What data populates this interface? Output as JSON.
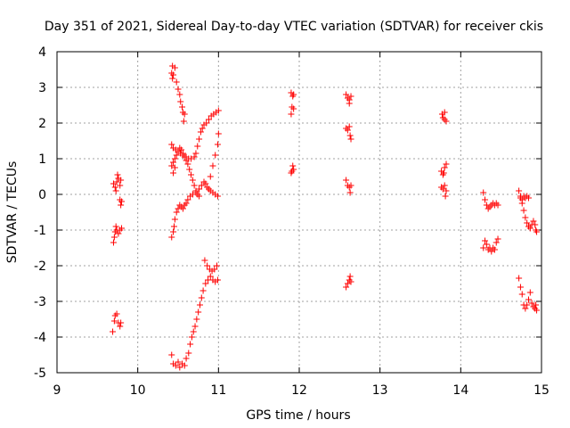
{
  "chart_data": {
    "type": "scatter",
    "title": "Day 351 of 2021, Sidereal Day-to-day VTEC variation (SDTVAR) for receiver ckis",
    "xlabel": "GPS time / hours",
    "ylabel": "SDTVAR / TECUs",
    "xlim": [
      9,
      15
    ],
    "ylim": [
      -5,
      4
    ],
    "x_ticks": [
      "9",
      "10",
      "11",
      "12",
      "13",
      "14",
      "15"
    ],
    "y_ticks": [
      "-5",
      "-4",
      "-3",
      "-2",
      "-1",
      "0",
      "1",
      "2",
      "3",
      "4"
    ],
    "grid": true,
    "marker": "+",
    "marker_color": "#ff0000",
    "series": [
      {
        "name": "SDTVAR",
        "points": [
          [
            9.7,
            0.3
          ],
          [
            9.72,
            0.2
          ],
          [
            9.74,
            0.35
          ],
          [
            9.76,
            0.45
          ],
          [
            9.78,
            0.25
          ],
          [
            9.75,
            0.55
          ],
          [
            9.73,
            0.1
          ],
          [
            9.79,
            0.4
          ],
          [
            9.78,
            -0.15
          ],
          [
            9.79,
            -0.3
          ],
          [
            9.8,
            -0.2
          ],
          [
            9.7,
            -1.35
          ],
          [
            9.71,
            -1.2
          ],
          [
            9.72,
            -1.05
          ],
          [
            9.73,
            -0.9
          ],
          [
            9.74,
            -1.0
          ],
          [
            9.76,
            -1.1
          ],
          [
            9.78,
            -1.0
          ],
          [
            9.8,
            -0.95
          ],
          [
            9.69,
            -3.85
          ],
          [
            9.71,
            -3.55
          ],
          [
            9.72,
            -3.4
          ],
          [
            9.74,
            -3.35
          ],
          [
            9.76,
            -3.6
          ],
          [
            9.78,
            -3.7
          ],
          [
            9.79,
            -3.6
          ],
          [
            10.43,
            3.6
          ],
          [
            10.46,
            3.55
          ],
          [
            10.42,
            3.4
          ],
          [
            10.44,
            3.35
          ],
          [
            10.43,
            3.25
          ],
          [
            10.48,
            3.15
          ],
          [
            10.5,
            2.95
          ],
          [
            10.52,
            2.8
          ],
          [
            10.53,
            2.6
          ],
          [
            10.55,
            2.45
          ],
          [
            10.56,
            2.3
          ],
          [
            10.58,
            2.25
          ],
          [
            10.57,
            2.05
          ],
          [
            10.42,
            1.4
          ],
          [
            10.44,
            1.3
          ],
          [
            10.47,
            1.25
          ],
          [
            10.5,
            1.2
          ],
          [
            10.53,
            1.15
          ],
          [
            10.56,
            1.1
          ],
          [
            10.6,
            1.05
          ],
          [
            10.63,
            1.0
          ],
          [
            10.66,
            1.0
          ],
          [
            10.7,
            1.05
          ],
          [
            10.72,
            1.15
          ],
          [
            10.74,
            1.35
          ],
          [
            10.76,
            1.55
          ],
          [
            10.78,
            1.75
          ],
          [
            10.8,
            1.85
          ],
          [
            10.82,
            1.95
          ],
          [
            10.85,
            2.0
          ],
          [
            10.88,
            2.1
          ],
          [
            10.91,
            2.2
          ],
          [
            10.94,
            2.25
          ],
          [
            10.97,
            2.3
          ],
          [
            11.0,
            2.35
          ],
          [
            10.42,
            0.8
          ],
          [
            10.44,
            0.9
          ],
          [
            10.46,
            1.0
          ],
          [
            10.48,
            1.1
          ],
          [
            10.5,
            1.2
          ],
          [
            10.52,
            1.3
          ],
          [
            10.54,
            1.25
          ],
          [
            10.56,
            1.15
          ],
          [
            10.58,
            1.05
          ],
          [
            10.6,
            0.95
          ],
          [
            10.62,
            0.85
          ],
          [
            10.64,
            0.7
          ],
          [
            10.66,
            0.55
          ],
          [
            10.68,
            0.4
          ],
          [
            10.7,
            0.25
          ],
          [
            10.72,
            0.1
          ],
          [
            10.74,
            0.0
          ],
          [
            10.76,
            -0.05
          ],
          [
            10.44,
            0.6
          ],
          [
            10.46,
            0.75
          ],
          [
            10.42,
            -1.2
          ],
          [
            10.44,
            -1.05
          ],
          [
            10.45,
            -0.9
          ],
          [
            10.46,
            -0.7
          ],
          [
            10.48,
            -0.5
          ],
          [
            10.5,
            -0.4
          ],
          [
            10.52,
            -0.3
          ],
          [
            10.54,
            -0.35
          ],
          [
            10.56,
            -0.4
          ],
          [
            10.58,
            -0.3
          ],
          [
            10.6,
            -0.25
          ],
          [
            10.62,
            -0.15
          ],
          [
            10.65,
            -0.05
          ],
          [
            10.68,
            0.0
          ],
          [
            10.72,
            0.05
          ],
          [
            10.76,
            0.15
          ],
          [
            10.79,
            0.25
          ],
          [
            10.82,
            0.35
          ],
          [
            10.84,
            0.3
          ],
          [
            10.86,
            0.2
          ],
          [
            10.88,
            0.15
          ],
          [
            10.9,
            0.1
          ],
          [
            10.93,
            0.05
          ],
          [
            10.96,
            0.0
          ],
          [
            10.99,
            -0.05
          ],
          [
            10.9,
            0.5
          ],
          [
            10.93,
            0.8
          ],
          [
            10.96,
            1.1
          ],
          [
            10.99,
            1.4
          ],
          [
            11.0,
            1.7
          ],
          [
            10.42,
            -4.5
          ],
          [
            10.44,
            -4.75
          ],
          [
            10.47,
            -4.8
          ],
          [
            10.5,
            -4.7
          ],
          [
            10.52,
            -4.85
          ],
          [
            10.55,
            -4.75
          ],
          [
            10.58,
            -4.8
          ],
          [
            10.6,
            -4.6
          ],
          [
            10.63,
            -4.45
          ],
          [
            10.65,
            -4.2
          ],
          [
            10.67,
            -4.0
          ],
          [
            10.69,
            -3.85
          ],
          [
            10.71,
            -3.7
          ],
          [
            10.73,
            -3.5
          ],
          [
            10.75,
            -3.3
          ],
          [
            10.77,
            -3.1
          ],
          [
            10.79,
            -2.9
          ],
          [
            10.81,
            -2.7
          ],
          [
            10.84,
            -2.5
          ],
          [
            10.87,
            -2.4
          ],
          [
            10.9,
            -2.3
          ],
          [
            10.93,
            -2.4
          ],
          [
            10.96,
            -2.45
          ],
          [
            10.99,
            -2.4
          ],
          [
            10.83,
            -1.85
          ],
          [
            10.86,
            -2.0
          ],
          [
            10.89,
            -2.1
          ],
          [
            10.92,
            -2.15
          ],
          [
            10.95,
            -2.1
          ],
          [
            10.98,
            -2.0
          ],
          [
            11.9,
            2.85
          ],
          [
            11.92,
            2.75
          ],
          [
            11.93,
            2.8
          ],
          [
            11.91,
            2.45
          ],
          [
            11.93,
            2.4
          ],
          [
            11.9,
            2.25
          ],
          [
            11.9,
            0.6
          ],
          [
            11.92,
            0.8
          ],
          [
            11.93,
            0.7
          ],
          [
            11.91,
            0.65
          ],
          [
            12.58,
            2.8
          ],
          [
            12.6,
            2.7
          ],
          [
            12.62,
            2.65
          ],
          [
            12.64,
            2.75
          ],
          [
            12.62,
            2.55
          ],
          [
            12.58,
            1.85
          ],
          [
            12.6,
            1.8
          ],
          [
            12.62,
            1.9
          ],
          [
            12.63,
            1.65
          ],
          [
            12.64,
            1.55
          ],
          [
            12.58,
            0.4
          ],
          [
            12.6,
            0.25
          ],
          [
            12.62,
            0.2
          ],
          [
            12.64,
            0.25
          ],
          [
            12.63,
            0.05
          ],
          [
            12.58,
            -2.6
          ],
          [
            12.6,
            -2.5
          ],
          [
            12.62,
            -2.4
          ],
          [
            12.63,
            -2.3
          ],
          [
            12.64,
            -2.45
          ],
          [
            13.77,
            2.25
          ],
          [
            13.78,
            2.15
          ],
          [
            13.8,
            2.3
          ],
          [
            13.82,
            2.05
          ],
          [
            13.8,
            2.1
          ],
          [
            13.76,
            0.65
          ],
          [
            13.78,
            0.55
          ],
          [
            13.8,
            0.75
          ],
          [
            13.82,
            0.85
          ],
          [
            13.79,
            0.6
          ],
          [
            13.76,
            0.2
          ],
          [
            13.78,
            0.15
          ],
          [
            13.8,
            0.25
          ],
          [
            13.82,
            0.1
          ],
          [
            13.81,
            -0.05
          ],
          [
            14.28,
            0.05
          ],
          [
            14.3,
            -0.15
          ],
          [
            14.32,
            -0.3
          ],
          [
            14.34,
            -0.4
          ],
          [
            14.36,
            -0.35
          ],
          [
            14.38,
            -0.3
          ],
          [
            14.4,
            -0.25
          ],
          [
            14.42,
            -0.3
          ],
          [
            14.44,
            -0.25
          ],
          [
            14.46,
            -0.3
          ],
          [
            14.28,
            -1.5
          ],
          [
            14.3,
            -1.3
          ],
          [
            14.32,
            -1.4
          ],
          [
            14.34,
            -1.55
          ],
          [
            14.36,
            -1.5
          ],
          [
            14.38,
            -1.6
          ],
          [
            14.4,
            -1.5
          ],
          [
            14.42,
            -1.55
          ],
          [
            14.44,
            -1.35
          ],
          [
            14.46,
            -1.25
          ],
          [
            14.72,
            0.1
          ],
          [
            14.74,
            -0.05
          ],
          [
            14.76,
            -0.25
          ],
          [
            14.78,
            -0.45
          ],
          [
            14.8,
            -0.65
          ],
          [
            14.82,
            -0.8
          ],
          [
            14.84,
            -0.9
          ],
          [
            14.86,
            -0.95
          ],
          [
            14.88,
            -0.85
          ],
          [
            14.9,
            -0.75
          ],
          [
            14.92,
            -0.85
          ],
          [
            14.93,
            -1.0
          ],
          [
            14.94,
            -1.05
          ],
          [
            14.74,
            -0.1
          ],
          [
            14.76,
            -0.15
          ],
          [
            14.78,
            -0.05
          ],
          [
            14.8,
            -0.1
          ],
          [
            14.82,
            -0.05
          ],
          [
            14.84,
            -0.1
          ],
          [
            14.72,
            -2.35
          ],
          [
            14.74,
            -2.6
          ],
          [
            14.76,
            -2.8
          ],
          [
            14.78,
            -3.1
          ],
          [
            14.8,
            -3.2
          ],
          [
            14.82,
            -3.1
          ],
          [
            14.84,
            -2.95
          ],
          [
            14.86,
            -2.75
          ],
          [
            14.88,
            -3.05
          ],
          [
            14.9,
            -3.15
          ],
          [
            14.92,
            -3.2
          ],
          [
            14.94,
            -3.25
          ],
          [
            14.93,
            -3.1
          ]
        ]
      }
    ]
  }
}
